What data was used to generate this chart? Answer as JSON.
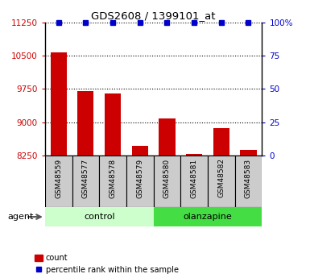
{
  "title": "GDS2608 / 1399101_at",
  "samples": [
    "GSM48559",
    "GSM48577",
    "GSM48578",
    "GSM48579",
    "GSM48580",
    "GSM48581",
    "GSM48582",
    "GSM48583"
  ],
  "counts": [
    10580,
    9700,
    9650,
    8480,
    9080,
    8295,
    8870,
    8380
  ],
  "percentile_ranks": [
    100,
    100,
    100,
    100,
    100,
    100,
    100,
    100
  ],
  "ylim_left": [
    8250,
    11250
  ],
  "ylim_right": [
    0,
    100
  ],
  "yticks_left": [
    8250,
    9000,
    9750,
    10500,
    11250
  ],
  "yticks_right": [
    0,
    25,
    50,
    75,
    100
  ],
  "yticklabels_right": [
    "0",
    "25",
    "50",
    "75",
    "100%"
  ],
  "bar_color": "#cc0000",
  "marker_color": "#0000cc",
  "control_indices": [
    0,
    1,
    2,
    3
  ],
  "olanzapine_indices": [
    4,
    5,
    6,
    7
  ],
  "control_label": "control",
  "olanzapine_label": "olanzapine",
  "control_bg": "#ccffcc",
  "olanzapine_bg": "#44dd44",
  "sample_bg": "#cccccc",
  "legend_count_label": "count",
  "legend_pct_label": "percentile rank within the sample",
  "agent_label": "agent"
}
